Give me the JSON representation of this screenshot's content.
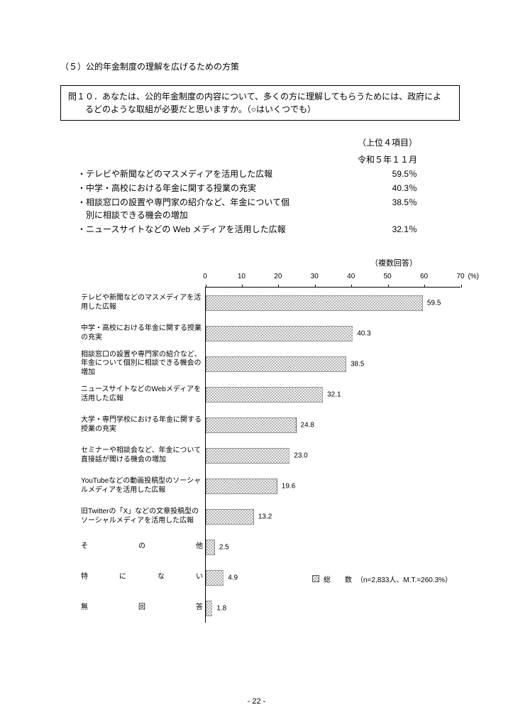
{
  "section_title": "（５）公的年金制度の理解を広げるための方策",
  "question": {
    "line1": "問１０．あなたは、公的年金制度の内容について、多くの方に理解してもらうためには、政府によ",
    "line2": "るどのような取組が必要だと思いますか。（○はいくつでも）"
  },
  "top4": {
    "header1": "（上位４項目）",
    "header2": "令和５年１１月",
    "rows": [
      {
        "label": "・テレビや新聞などのマスメディアを活用した広報",
        "value": "59.5％"
      },
      {
        "label": "・中学・高校における年金に関する授業の充実",
        "value": "40.3％"
      },
      {
        "label": "・相談窓口の設置や専門家の紹介など、年金について個",
        "label2": "別に相談できる機会の増加",
        "value": "38.5％"
      },
      {
        "label": "・ニュースサイトなどの Web メディアを活用した広報",
        "value": "32.1％"
      }
    ]
  },
  "chart": {
    "note": "（複数回答）",
    "unit": "(%)",
    "type": "bar",
    "xlim": [
      0,
      70
    ],
    "xtick_step": 10,
    "ticks": [
      "0",
      "10",
      "20",
      "30",
      "40",
      "50",
      "60",
      "70"
    ],
    "max": 70,
    "bar_pattern": "crosshatch",
    "bar_border": "#555555",
    "bar_fill_bg": "#ffffff",
    "bar_fill_fg": "#888888",
    "background_color": "#ffffff",
    "text_color": "#000000",
    "label_fontsize": 10,
    "bars": [
      {
        "label": "テレビや新聞などのマスメディアを活用した広報",
        "value": 59.5,
        "display": "59.5"
      },
      {
        "label": "中学・高校における年金に関する授業の充実",
        "value": 40.3,
        "display": "40.3"
      },
      {
        "label": "相談窓口の設置や専門家の紹介など、年金について個別に相談できる機会の増加",
        "value": 38.5,
        "display": "38.5"
      },
      {
        "label": "ニュースサイトなどのWebメディアを活用した広報",
        "value": 32.1,
        "display": "32.1"
      },
      {
        "label": "大学・専門学校における年金に関する授業の充実",
        "value": 24.8,
        "display": "24.8"
      },
      {
        "label": "セミナーや相談会など、年金について直接話が聞ける機会の増加",
        "value": 23.0,
        "display": "23.0"
      },
      {
        "label": "YouTubeなどの動画投稿型のソーシャルメディアを活用した広報",
        "value": 19.6,
        "display": "19.6"
      },
      {
        "label": "旧Twitterの「X」などの文章投稿型のソーシャルメディアを活用した広報",
        "value": 13.2,
        "display": "13.2"
      },
      {
        "label": "その他",
        "justify": true,
        "value": 2.5,
        "display": "2.5"
      },
      {
        "label": "特にない",
        "justify": true,
        "value": 4.9,
        "display": "4.9"
      },
      {
        "label": "無回答",
        "justify": true,
        "value": 1.8,
        "display": "1.8"
      }
    ],
    "legend": {
      "label": "総　　数",
      "detail": "（n=2,833人、M.T.=260.3%）",
      "swatch_pattern": "crosshatch"
    }
  },
  "page_number": "- 22 -"
}
